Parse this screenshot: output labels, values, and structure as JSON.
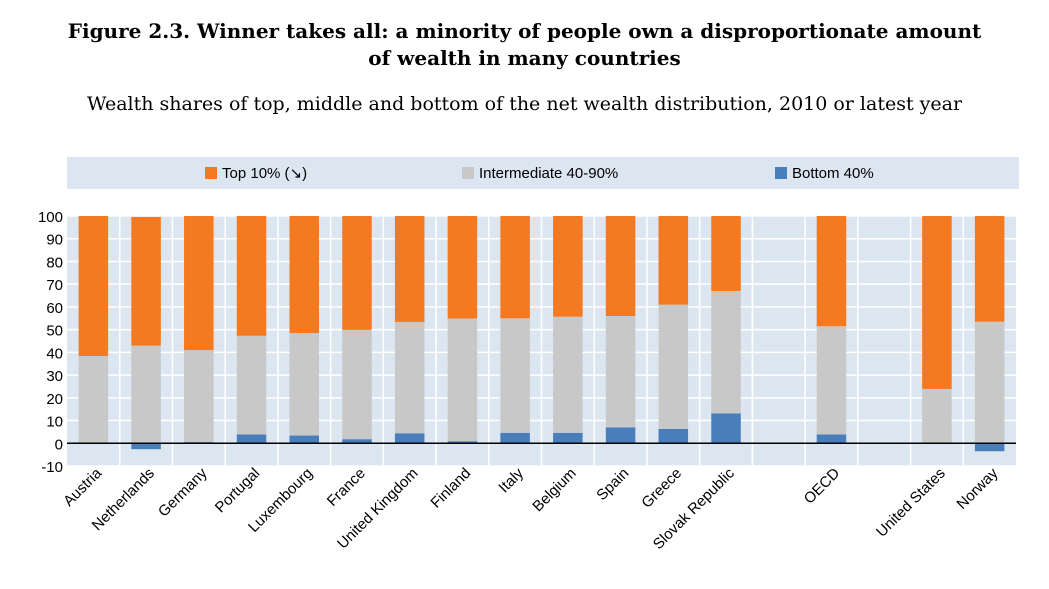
{
  "title_line1": "Figure 2.3. Winner takes all: a minority of people own a disproportionate amount",
  "title_line2": "of wealth in many countries",
  "subtitle": "Wealth shares of top, middle and bottom of the net wealth distribution, 2010 or latest year",
  "colors": {
    "top": "#F47920",
    "intermediate": "#C8C8C8",
    "bottom": "#4A7EBB",
    "legend_bg": "#DCE6F1",
    "plot_bg": "#DCE6F1"
  },
  "chart_data": {
    "type": "bar",
    "stacked": true,
    "categories": [
      "Austria",
      "Netherlands",
      "Germany",
      "Portugal",
      "Luxembourg",
      "France",
      "United Kingdom",
      "Finland",
      "Italy",
      "Belgium",
      "Spain",
      "Greece",
      "Slovak Republic",
      "OECD",
      "United States",
      "Norway"
    ],
    "series": [
      {
        "name": "Bottom 40%",
        "values": [
          0,
          -2.6,
          0.5,
          3.9,
          3.4,
          1.8,
          4.4,
          0.9,
          4.6,
          4.6,
          7.0,
          6.3,
          13.1,
          3.9,
          0,
          -3.5
        ]
      },
      {
        "name": "Intermediate 40-90%",
        "values": [
          38.4,
          43.0,
          40.5,
          43.4,
          45.1,
          48.1,
          49.0,
          54.0,
          50.4,
          51.1,
          49.0,
          54.7,
          53.9,
          47.6,
          23.9,
          53.5
        ]
      },
      {
        "name": "Top 10% (↘)",
        "values": [
          61.6,
          56.6,
          59.0,
          52.7,
          51.5,
          50.1,
          46.6,
          45.1,
          45.0,
          44.3,
          44.0,
          39.0,
          33.0,
          48.5,
          76.1,
          46.5
        ]
      }
    ],
    "ylim": [
      -10,
      100
    ],
    "yticks": [
      -10,
      0,
      10,
      20,
      30,
      40,
      50,
      60,
      70,
      80,
      90,
      100
    ],
    "legend_position": "top",
    "grid": true
  }
}
